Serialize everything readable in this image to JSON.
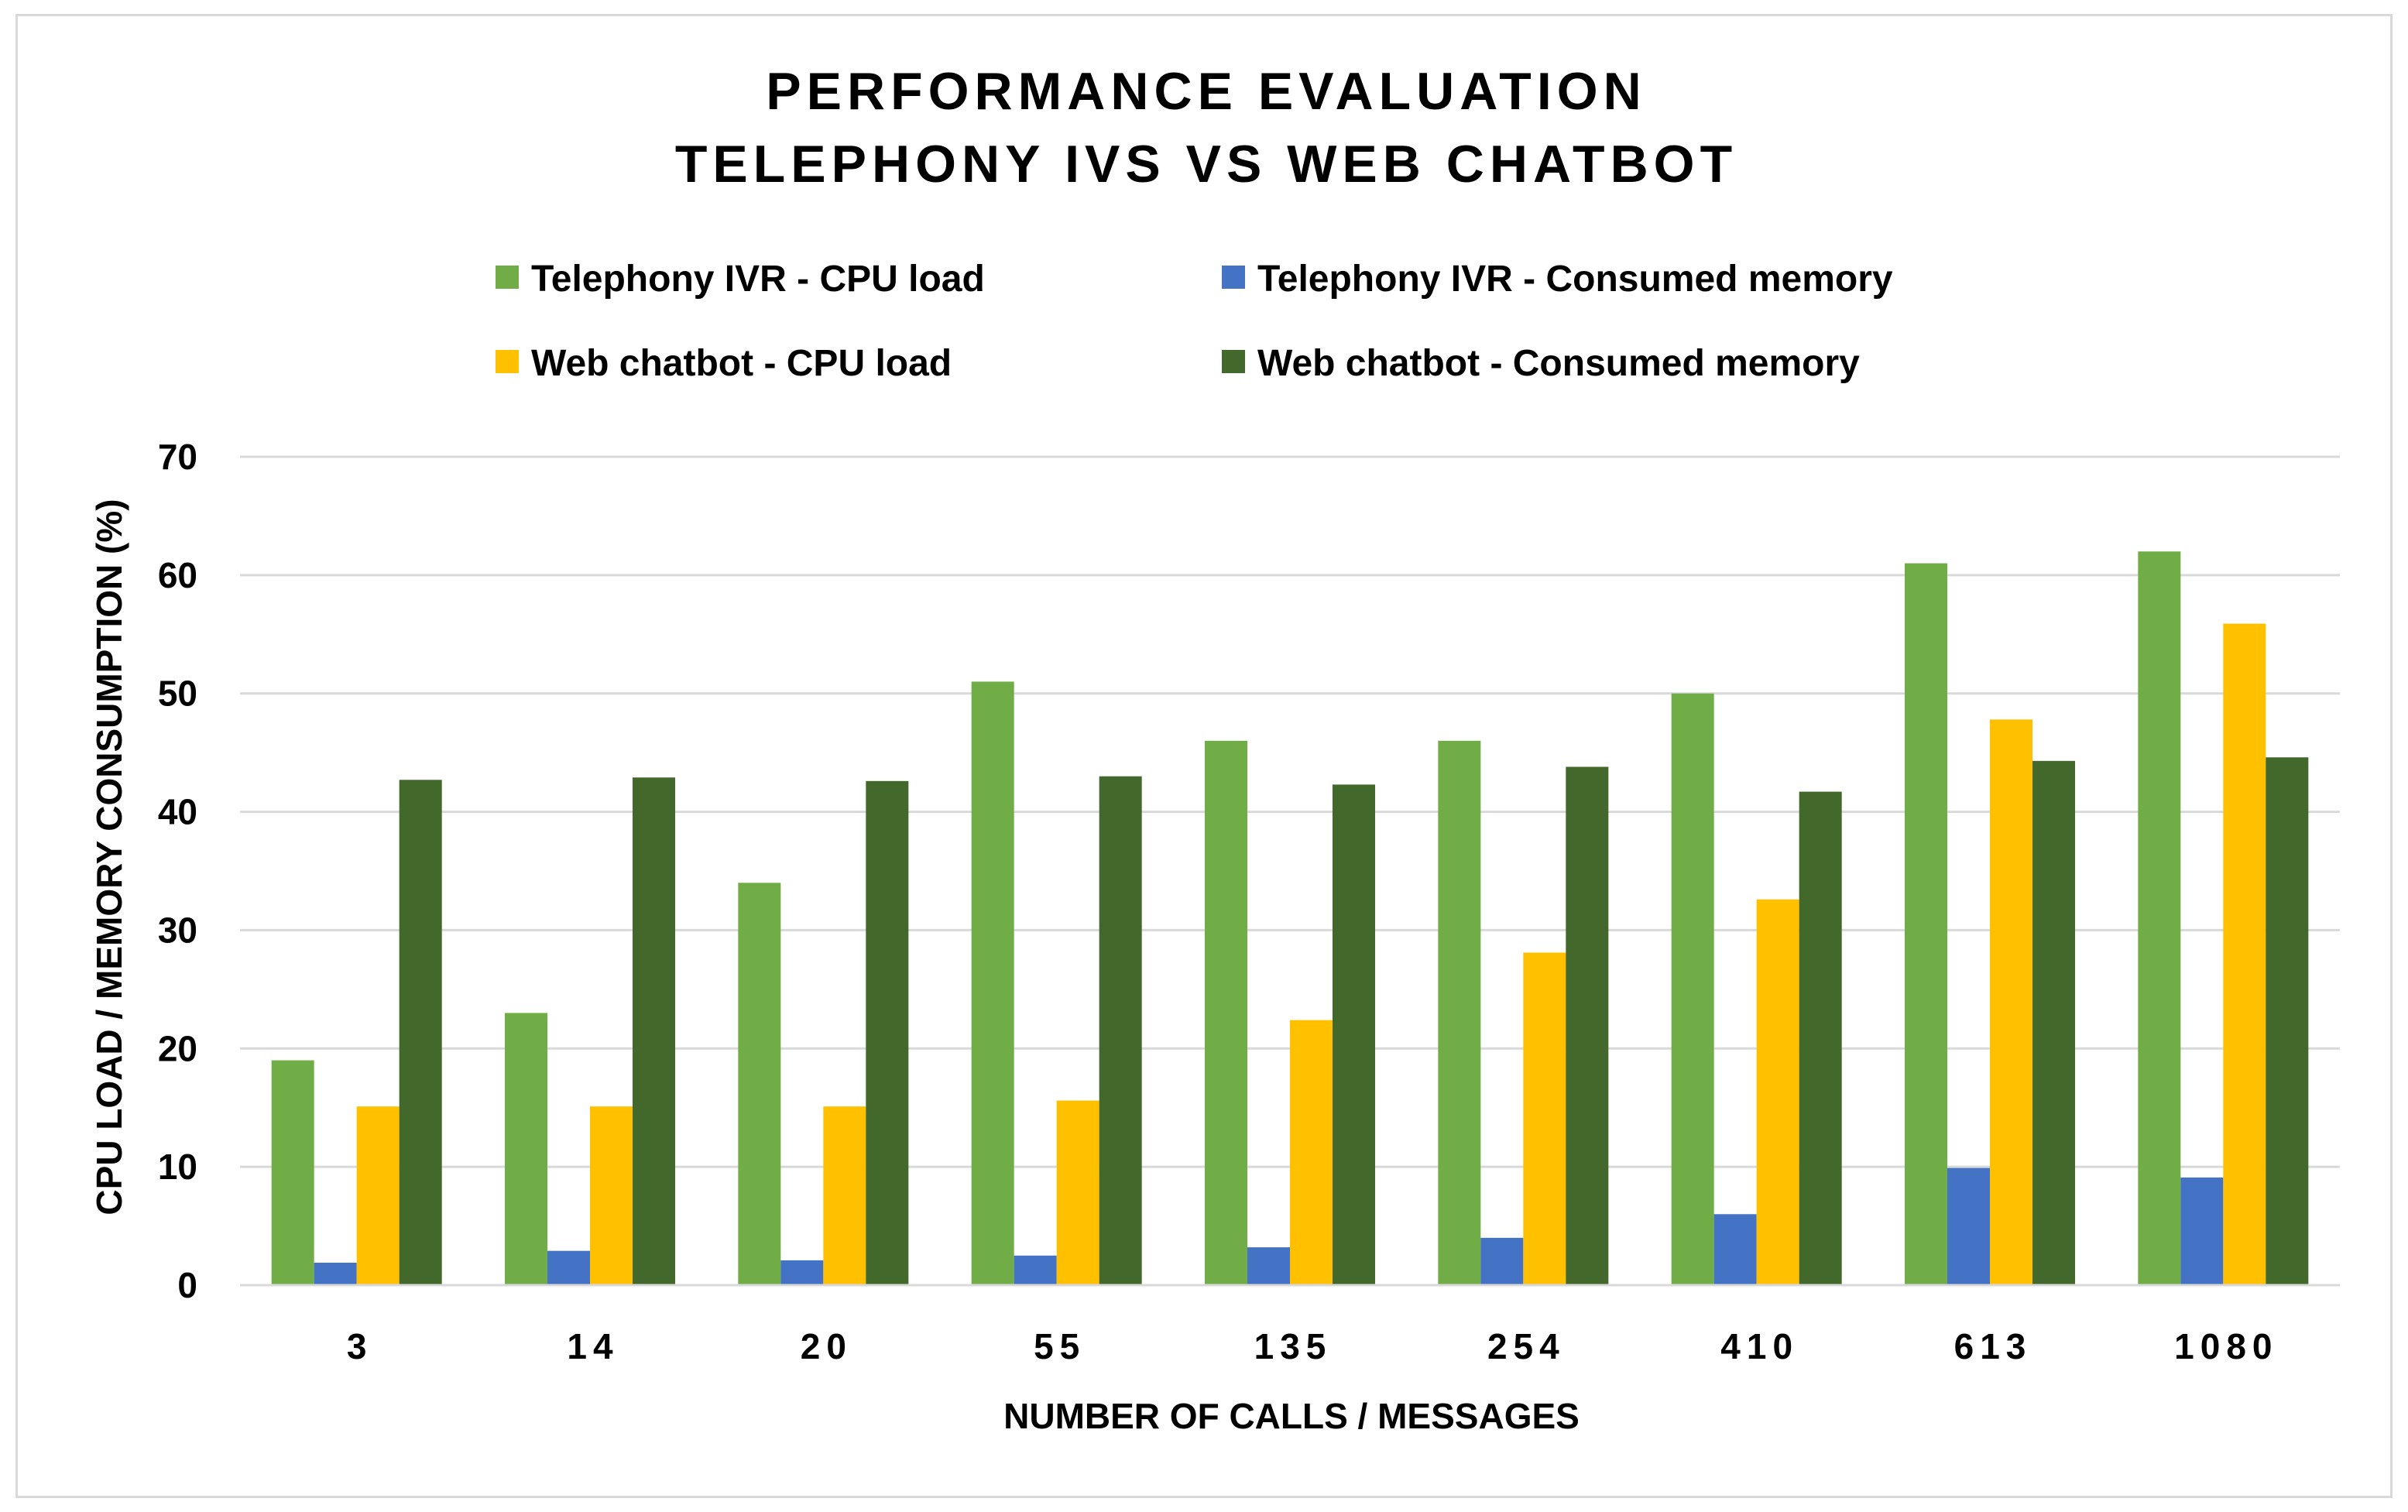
{
  "chart_data": {
    "type": "bar",
    "title": [
      "PERFORMANCE EVALUATION",
      "TELEPHONY IVS VS WEB CHATBOT"
    ],
    "xlabel": "NUMBER OF CALLS / MESSAGES",
    "ylabel": "CPU LOAD / MEMORY CONSUMPTION (%)",
    "ylim": [
      0,
      70
    ],
    "yticks": [
      "0",
      "10",
      "20",
      "30",
      "40",
      "50",
      "60",
      "70"
    ],
    "grid": true,
    "legend_position": "top",
    "categories": [
      "3",
      "14",
      "20",
      "55",
      "135",
      "254",
      "410",
      "613",
      "1080"
    ],
    "series": [
      {
        "name": "Telephony IVR - CPU load",
        "color": "#70ad47",
        "values": [
          19,
          23,
          34,
          51,
          46,
          46,
          50,
          61,
          62
        ]
      },
      {
        "name": "Telephony IVR - Consumed memory",
        "color": "#4472c4",
        "values": [
          1.9,
          2.9,
          2.1,
          2.5,
          3.2,
          4.0,
          6.0,
          9.9,
          9.1
        ]
      },
      {
        "name": "Web chatbot - CPU load",
        "color": "#ffc000",
        "values": [
          15.1,
          15.1,
          15.1,
          15.6,
          22.4,
          28.1,
          32.6,
          47.8,
          55.9
        ]
      },
      {
        "name": "Web chatbot - Consumed memory",
        "color": "#43682b",
        "values": [
          42.7,
          42.9,
          42.6,
          43.0,
          42.3,
          43.8,
          41.7,
          44.3,
          44.6
        ]
      }
    ]
  }
}
